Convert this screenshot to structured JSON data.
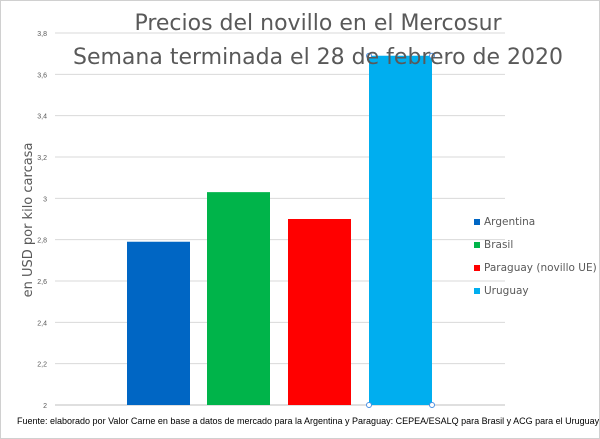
{
  "chart_data": {
    "type": "bar",
    "title": "Precios del novillo en el Mercosur",
    "subtitle": "Semana terminada el 28 de febrero de 2020",
    "xlabel": "",
    "ylabel": "en USD por kilo carcasa",
    "ylim": [
      2,
      3.8
    ],
    "yticks": [
      "2",
      "2,2",
      "2,4",
      "2,6",
      "2,8",
      "3",
      "3,2",
      "3,4",
      "3,6",
      "3,8"
    ],
    "ytick_values": [
      2,
      2.2,
      2.4,
      2.6,
      2.8,
      3.0,
      3.2,
      3.4,
      3.6,
      3.8
    ],
    "grid": true,
    "legend_position": "right",
    "series": [
      {
        "name": "Argentina",
        "value": 2.79,
        "color": "#0066c4"
      },
      {
        "name": "Brasil",
        "value": 3.03,
        "color": "#00b44a"
      },
      {
        "name": "Paraguay (novillo UE)",
        "value": 2.9,
        "color": "#ff0000"
      },
      {
        "name": "Uruguay",
        "value": 3.69,
        "color": "#00aeef"
      }
    ],
    "footnote": "Fuente: elaborado por Valor Carne en base a datos de mercado para la Argentina y Paraguay: CEPEA/ESALQ para Brasil y ACG para el Uruguay"
  }
}
